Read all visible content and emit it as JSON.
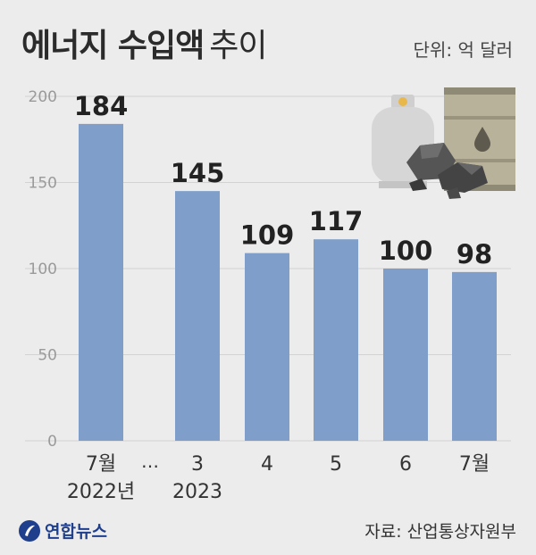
{
  "title": {
    "bold": "에너지 수입액",
    "light": "추이"
  },
  "unit_label": "단위: 억 달러",
  "footer": {
    "logo_text": "연합뉴스",
    "source": "자료: 산업통상자원부"
  },
  "colors": {
    "bar": "#7f9fca",
    "background": "#ececec",
    "grid": "#d2d2d2",
    "value_text": "#222222"
  },
  "icons": [
    "gas-cylinder-icon",
    "oil-drum-icon",
    "coal-icon"
  ],
  "chart_data": {
    "type": "bar",
    "title": "에너지 수입액 추이",
    "unit": "억 달러",
    "categories": [
      "7월 2022년",
      "3 2023",
      "4",
      "5",
      "6",
      "7월"
    ],
    "category_lines": [
      [
        "7월",
        "2022년"
      ],
      [
        "3",
        "2023"
      ],
      [
        "4"
      ],
      [
        "5"
      ],
      [
        "6"
      ],
      [
        "7월"
      ]
    ],
    "values": [
      184,
      145,
      109,
      117,
      100,
      98
    ],
    "axis_break_label": "…",
    "yticks": [
      0,
      50,
      100,
      150,
      200
    ],
    "ylim": [
      0,
      200
    ],
    "grid": true
  }
}
